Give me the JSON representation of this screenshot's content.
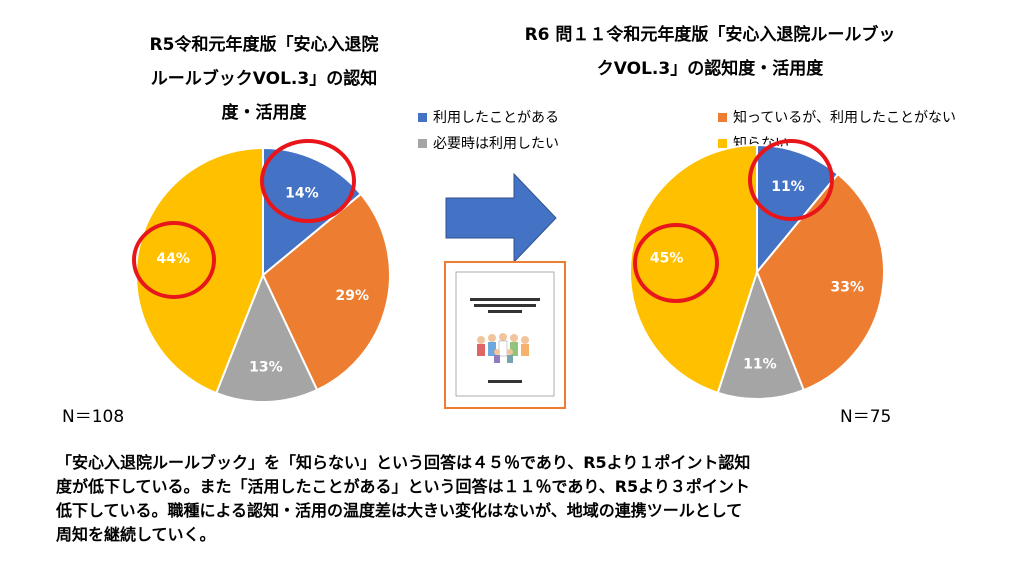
{
  "colors": {
    "blue": "#4472C4",
    "orange": "#ED7D31",
    "gray": "#A5A5A5",
    "yellow": "#FFC000",
    "highlight": "#E8161A",
    "arrow": "#4472C4",
    "booklet_border": "#ED7D31"
  },
  "legend": [
    {
      "label": "利用したことがある",
      "color": "#4472C4"
    },
    {
      "label": "知っているが、利用したことがない",
      "color": "#ED7D31"
    },
    {
      "label": "必要時は利用したい",
      "color": "#A5A5A5"
    },
    {
      "label": "知らない",
      "color": "#FFC000"
    }
  ],
  "chart_data": [
    {
      "type": "pie",
      "title": "R5令和元年度版「安心入退院ルールブックVOL.3」の認知度・活用度",
      "title_lines": [
        "R5令和元年度版「安心入退院",
        "ルールブックVOL.3」の認知",
        "度・活用度"
      ],
      "n_label": "N＝108",
      "slices": [
        {
          "category": "利用したことがある",
          "value": 14,
          "label": "14%"
        },
        {
          "category": "知っているが、利用したことがない",
          "value": 29,
          "label": "29%"
        },
        {
          "category": "必要時は利用したい",
          "value": 13,
          "label": "13%"
        },
        {
          "category": "知らない",
          "value": 44,
          "label": "44%"
        }
      ]
    },
    {
      "type": "pie",
      "title": "R6 問１１令和元年度版「安心入退院ルールブックVOL.3」の認知度・活用度",
      "title_lines": [
        "R6 問１１令和元年度版「安心入退院ルールブッ",
        "クVOL.3」の認知度・活用度"
      ],
      "n_label": "N＝75",
      "slices": [
        {
          "category": "利用したことがある",
          "value": 11,
          "label": "11%"
        },
        {
          "category": "知っているが、利用したことがない",
          "value": 33,
          "label": "33%"
        },
        {
          "category": "必要時は利用したい",
          "value": 11,
          "label": "11%"
        },
        {
          "category": "知らない",
          "value": 45,
          "label": "45%"
        }
      ]
    }
  ],
  "summary_lines": [
    "「安心入退院ルールブック」を「知らない」という回答は４５％であり、R5より１ポイント認知",
    "度が低下している。また「活用したことがある」という回答は１１％であり、R5より３ポイント",
    "低下している。職種による認知・活用の温度差は大きい変化はないが、地域の連携ツールとして",
    "周知を継続していく。"
  ]
}
